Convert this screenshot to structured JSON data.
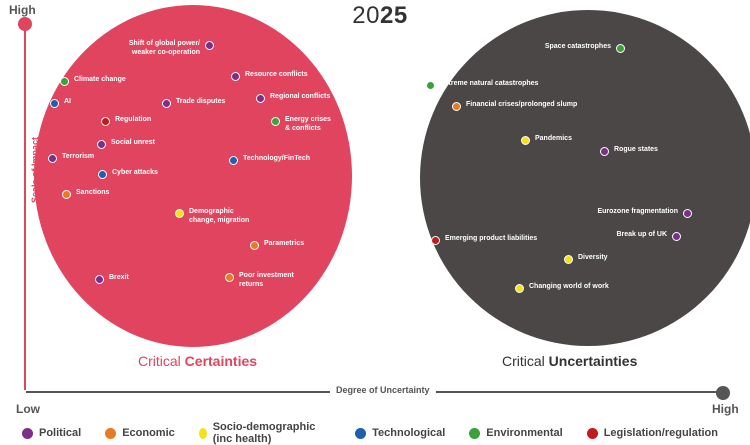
{
  "title": {
    "year_prefix": "20",
    "year_bold": "25"
  },
  "axes": {
    "y_high": "High",
    "x_low": "Low",
    "x_high": "High",
    "y_label": "Scale of Impact",
    "x_label": "Degree of Uncertainty"
  },
  "groups": {
    "certainties": {
      "prefix": "Critical ",
      "bold": "Certainties"
    },
    "uncertainties": {
      "prefix": "Critical ",
      "bold": "Uncertainties"
    }
  },
  "colors": {
    "political": "#7b2f86",
    "economic": "#e87a24",
    "socio": "#f4e219",
    "technological": "#1f5fae",
    "environmental": "#3aa23a",
    "legislation": "#c11b1b",
    "certainties_fill": "#e0445e",
    "uncertainties_fill": "#4a4746"
  },
  "points": [
    {
      "label": "Shift of global power/\nweaker co-operation",
      "cat": "political",
      "side": "left"
    },
    {
      "label": "Resource conflicts",
      "cat": "political",
      "side": "right"
    },
    {
      "label": "Climate change",
      "cat": "environmental",
      "side": "right"
    },
    {
      "label": "AI",
      "cat": "technological",
      "side": "right"
    },
    {
      "label": "Trade disputes",
      "cat": "political",
      "side": "right"
    },
    {
      "label": "Regional conflicts",
      "cat": "political",
      "side": "right"
    },
    {
      "label": "Regulation",
      "cat": "legislation",
      "side": "right"
    },
    {
      "label": "Energy crises\n& conflicts",
      "cat": "environmental",
      "side": "right"
    },
    {
      "label": "Social unrest",
      "cat": "political",
      "side": "right"
    },
    {
      "label": "Terrorism",
      "cat": "political",
      "side": "right"
    },
    {
      "label": "Technology/FinTech",
      "cat": "technological",
      "side": "right"
    },
    {
      "label": "Cyber attacks",
      "cat": "technological",
      "side": "right"
    },
    {
      "label": "Sanctions",
      "cat": "economic",
      "side": "right"
    },
    {
      "label": "Demographic\nchange, migration",
      "cat": "socio",
      "side": "right"
    },
    {
      "label": "Parametrics",
      "cat": "economic",
      "side": "right"
    },
    {
      "label": "Poor investment\nreturns",
      "cat": "economic",
      "side": "right"
    },
    {
      "label": "Brexit",
      "cat": "political",
      "side": "right"
    },
    {
      "label": "Space catastrophes",
      "cat": "environmental",
      "side": "left"
    },
    {
      "label": "Extreme natural catastrophes",
      "cat": "environmental",
      "side": "right"
    },
    {
      "label": "Financial crises/prolonged slump",
      "cat": "economic",
      "side": "right"
    },
    {
      "label": "Pandemics",
      "cat": "socio",
      "side": "right"
    },
    {
      "label": "Rogue states",
      "cat": "political",
      "side": "right"
    },
    {
      "label": "Eurozone fragmentation",
      "cat": "political",
      "side": "left"
    },
    {
      "label": "Break up of UK",
      "cat": "political",
      "side": "left"
    },
    {
      "label": "Emerging product liabilities",
      "cat": "legislation",
      "side": "right"
    },
    {
      "label": "Diversity",
      "cat": "socio",
      "side": "right"
    },
    {
      "label": "Changing world of work",
      "cat": "socio",
      "side": "right"
    }
  ],
  "legend": [
    {
      "label": "Political",
      "cat": "political"
    },
    {
      "label": "Economic",
      "cat": "economic"
    },
    {
      "label": "Socio-demographic (inc health)",
      "cat": "socio"
    },
    {
      "label": "Technological",
      "cat": "technological"
    },
    {
      "label": "Environmental",
      "cat": "environmental"
    },
    {
      "label": "Legislation/regulation",
      "cat": "legislation"
    }
  ]
}
